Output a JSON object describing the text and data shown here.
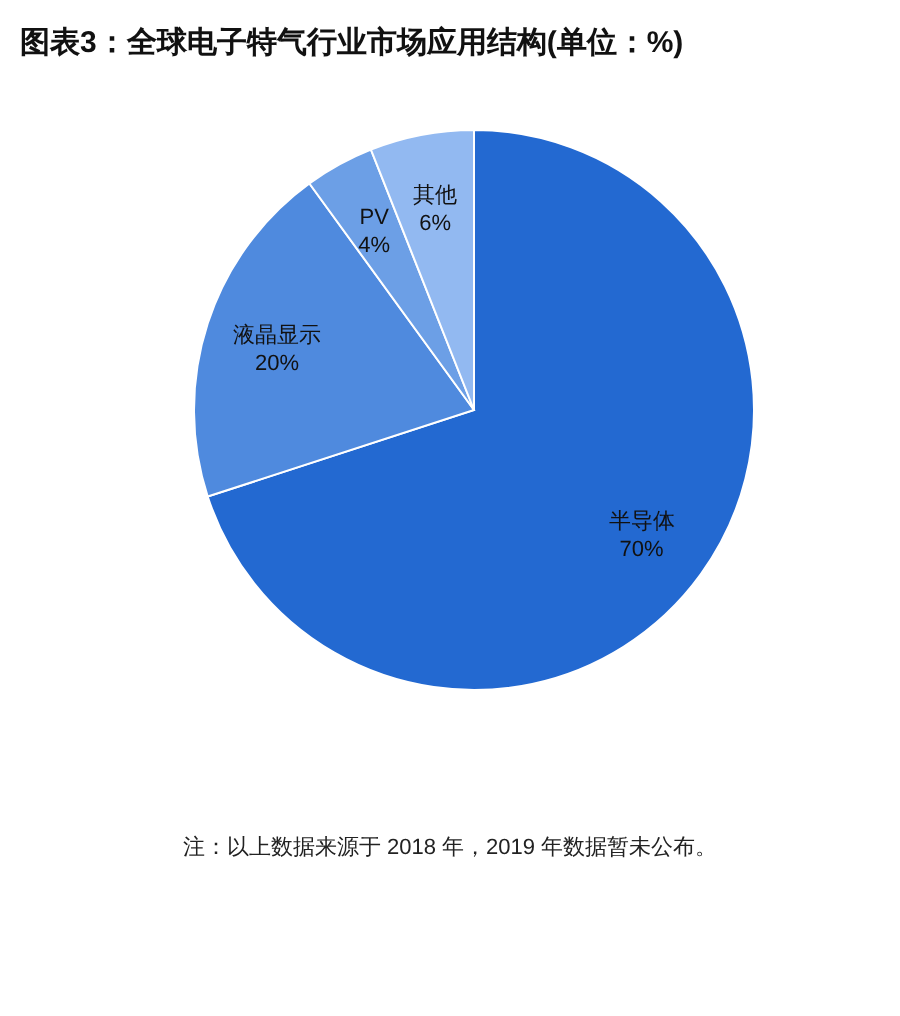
{
  "chart_data": {
    "type": "pie",
    "title": "图表3：全球电子特气行业市场应用结构(单位：%)",
    "categories": [
      "半导体",
      "液晶显示",
      "PV",
      "其他"
    ],
    "values": [
      70,
      20,
      4,
      6
    ],
    "value_labels": [
      "70%",
      "20%",
      "4%",
      "6%"
    ],
    "colors": [
      "#2369d1",
      "#4f8ade",
      "#6c9fe6",
      "#92b9f1"
    ],
    "annotations": [
      "注：以上数据来源于 2018 年，2019 年数据暂未公布。"
    ]
  }
}
